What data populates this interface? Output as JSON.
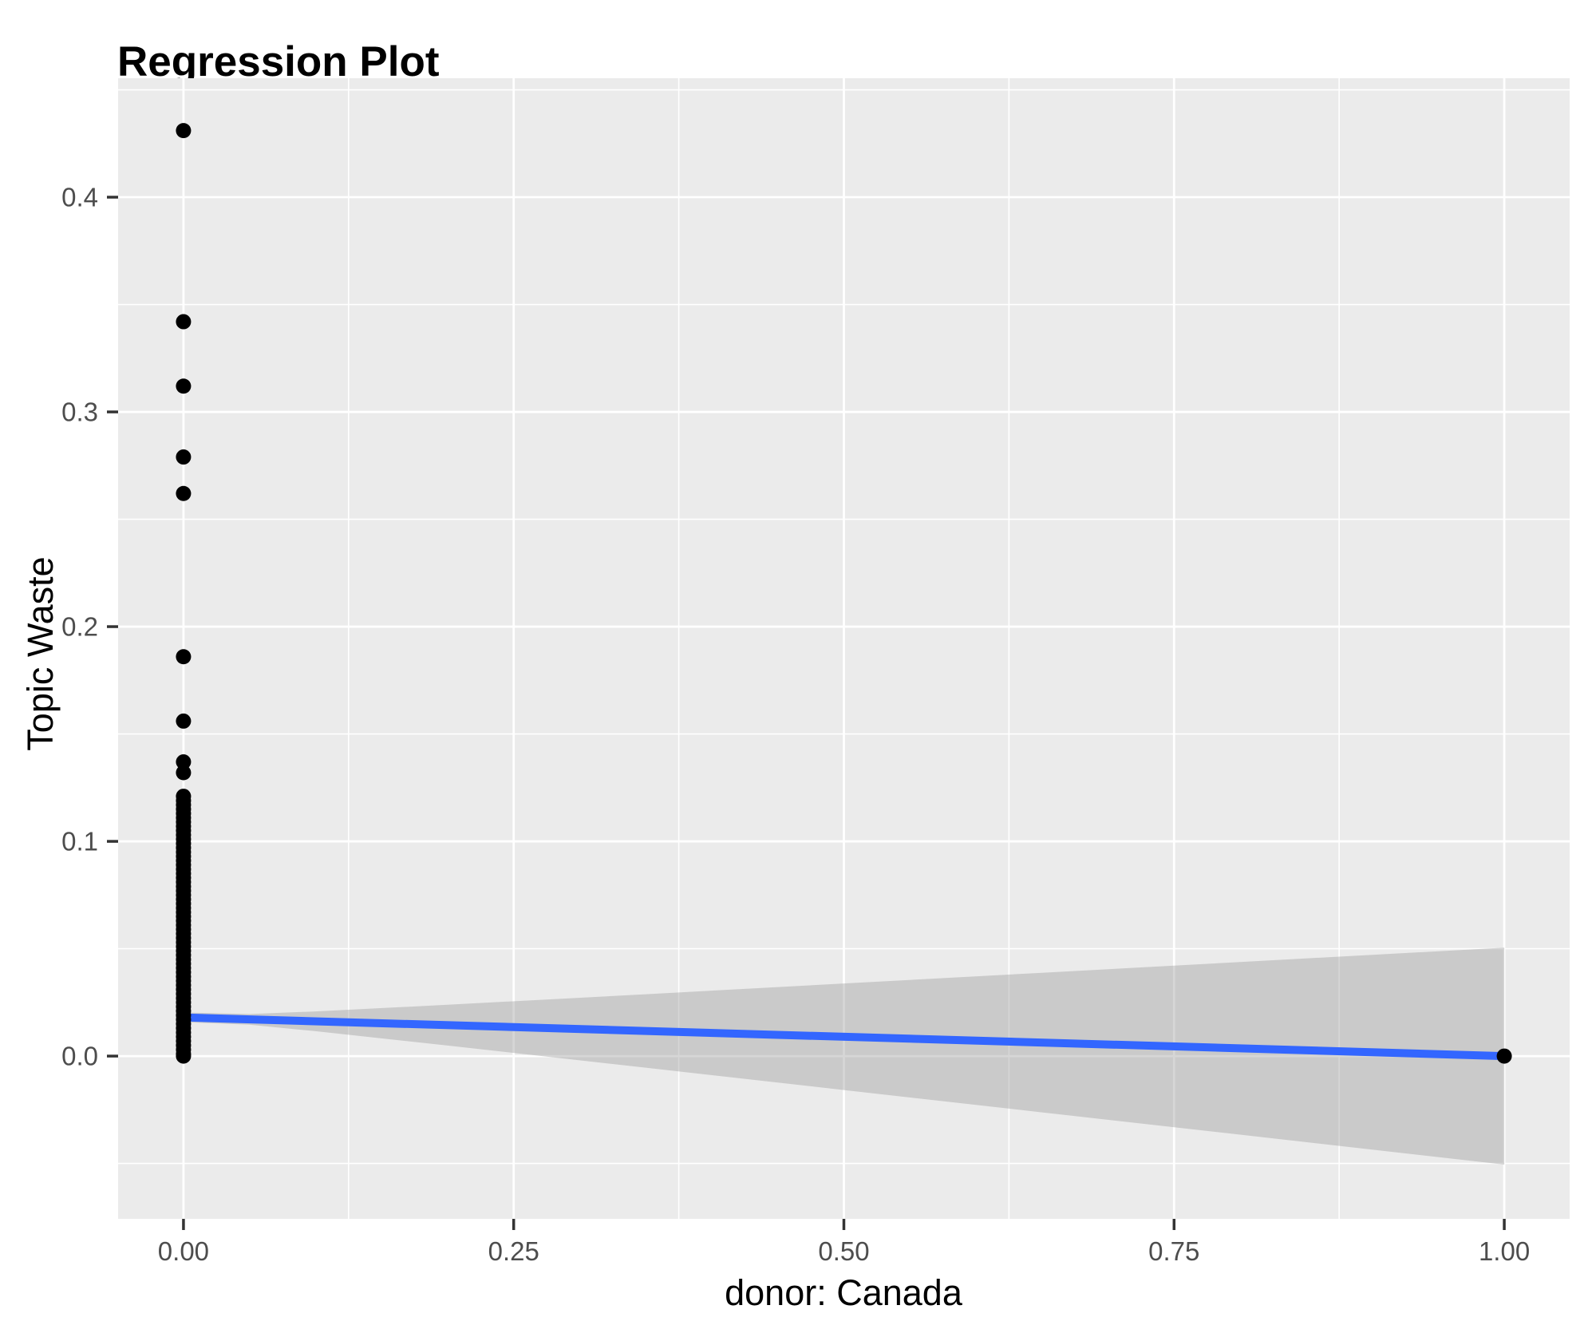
{
  "title": "Regression Plot",
  "style": {
    "panel_bg": "#EBEBEB",
    "grid_color": "#FFFFFF",
    "tick_mark_color": "#333333",
    "tick_label_color": "#4D4D4D",
    "title_color": "#000000",
    "point_color": "#000000",
    "line_color": "#3366FF",
    "band_color": "#999999",
    "band_opacity": 0.4
  },
  "chart_data": {
    "type": "scatter",
    "title": "Regression Plot",
    "xlabel": "donor: Canada",
    "ylabel": "Topic Waste",
    "legend_position": "none",
    "grid": true,
    "xlim": [
      -0.0495,
      1.0495
    ],
    "ylim": [
      -0.0758,
      0.4554
    ],
    "x_ticks": {
      "values": [
        0.0,
        0.25,
        0.5,
        0.75,
        1.0
      ],
      "labels": [
        "0.00",
        "0.25",
        "0.50",
        "0.75",
        "1.00"
      ]
    },
    "y_ticks": {
      "values": [
        0.0,
        0.1,
        0.2,
        0.3,
        0.4
      ],
      "labels": [
        "0.0",
        "0.1",
        "0.2",
        "0.3",
        "0.4"
      ]
    },
    "x_minor_gridlines": [
      0.125,
      0.375,
      0.625,
      0.875
    ],
    "y_minor_gridlines": [
      -0.05,
      0.05,
      0.15,
      0.25,
      0.35,
      0.45
    ],
    "points": {
      "x0": {
        "x": 0.0,
        "y_values": [
          0.431,
          0.342,
          0.312,
          0.279,
          0.262,
          0.186,
          0.156,
          0.137,
          0.132,
          0.121,
          0.119,
          0.117,
          0.115,
          0.113,
          0.111,
          0.109,
          0.107,
          0.105,
          0.103,
          0.101,
          0.099,
          0.097,
          0.095,
          0.093,
          0.091,
          0.089,
          0.087,
          0.085,
          0.083,
          0.081,
          0.079,
          0.077,
          0.075,
          0.073,
          0.071,
          0.069,
          0.067,
          0.065,
          0.063,
          0.061,
          0.059,
          0.057,
          0.055,
          0.053,
          0.051,
          0.049,
          0.047,
          0.045,
          0.043,
          0.041,
          0.039,
          0.037,
          0.035,
          0.033,
          0.031,
          0.029,
          0.027,
          0.025,
          0.023,
          0.021,
          0.019,
          0.017,
          0.015,
          0.013,
          0.011,
          0.009,
          0.007,
          0.005,
          0.003,
          0.001,
          0.0
        ]
      },
      "x1": {
        "x": 1.0,
        "y_values": [
          0.0
        ]
      }
    },
    "regression_line": {
      "x": [
        0.0,
        1.0
      ],
      "y": [
        0.018,
        0.0
      ]
    },
    "confidence_band": {
      "x": [
        0.0,
        0.05,
        0.1,
        0.2,
        0.35,
        0.5,
        0.65,
        0.8,
        1.0
      ],
      "upper": [
        0.0203,
        0.0196,
        0.0208,
        0.0239,
        0.0288,
        0.0338,
        0.0388,
        0.0438,
        0.0505
      ],
      "lower": [
        0.0158,
        0.0146,
        0.0116,
        0.0049,
        -0.0054,
        -0.0158,
        -0.0262,
        -0.0366,
        -0.0505
      ]
    }
  }
}
